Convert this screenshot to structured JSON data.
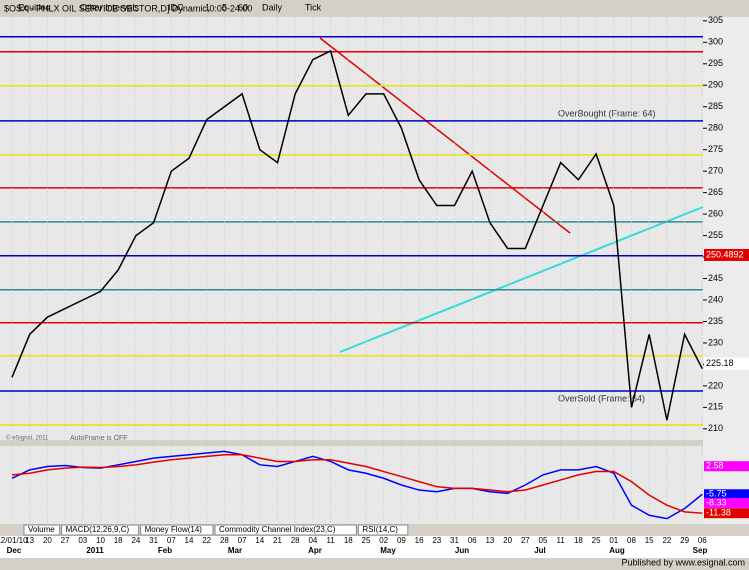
{
  "toolbar": {
    "items": [
      "Equities",
      "Other Intervals",
      "IDC",
      "1",
      "5",
      "60",
      "Daily",
      "Tick"
    ]
  },
  "chart_data": {
    "type": "line",
    "title": "$OSX - PHLX OIL SERVICE SECTOR,D] Dynamic,0:00-24:00",
    "categories": [
      "12/01/10",
      "13",
      "20",
      "27",
      "03",
      "10",
      "18",
      "24",
      "31",
      "07",
      "14",
      "22",
      "28",
      "07",
      "14",
      "21",
      "28",
      "04",
      "11",
      "18",
      "25",
      "02",
      "09",
      "16",
      "23",
      "31",
      "06",
      "13",
      "20",
      "27",
      "05",
      "11",
      "18",
      "25",
      "01",
      "08",
      "15",
      "22",
      "29",
      "06"
    ],
    "months": [
      "Dec",
      "2011",
      "Feb",
      "Mar",
      "Apr",
      "May",
      "Jun",
      "Jul",
      "Aug",
      "Sep"
    ],
    "series": [
      {
        "name": "$OSX",
        "color": "#000000",
        "values": [
          222,
          232,
          236,
          238,
          240,
          242,
          247,
          255,
          258,
          270,
          273,
          282,
          285,
          288,
          275,
          272,
          288,
          296,
          298,
          283,
          288,
          288,
          280,
          268,
          262,
          262,
          270,
          258,
          252,
          252,
          262,
          272,
          268,
          274,
          262,
          215,
          232,
          212,
          232,
          224
        ]
      }
    ],
    "levels": [
      {
        "value": 301.3,
        "color": "#0000c0"
      },
      {
        "value": 297.8,
        "color": "#e00000"
      },
      {
        "value": 289.9,
        "color": "#e6e600"
      },
      {
        "value": 281.7,
        "color": "#0000c0"
      },
      {
        "value": 273.8,
        "color": "#e6e600"
      },
      {
        "value": 266.1,
        "color": "#e00000"
      },
      {
        "value": 258.2,
        "color": "#2e8b8b"
      },
      {
        "value": 250.3,
        "color": "#0000c0"
      },
      {
        "value": 242.4,
        "color": "#2e8b8b"
      },
      {
        "value": 234.7,
        "color": "#e00000"
      },
      {
        "value": 227,
        "color": "#e6e600"
      },
      {
        "value": 218.8,
        "color": "#0000c0"
      },
      {
        "value": 210.9,
        "color": "#e6e600"
      }
    ],
    "ylim": [
      207.4,
      305.9
    ],
    "yticks": [
      305,
      300,
      295,
      290,
      285,
      280,
      275,
      270,
      265,
      260,
      255,
      250,
      245,
      240,
      235,
      230,
      225,
      220,
      215,
      210
    ],
    "tags": [
      {
        "value": 250.4892,
        "color": "#e00000"
      },
      {
        "value": 225.18,
        "color": "#ffffff"
      }
    ],
    "annotations": {
      "overbought": "OverBought (Frame: 64)",
      "oversold": "OverSold (Frame: 64)",
      "autoframe": "AutoFrame is OFF",
      "copyright": "© eSignal, 2011"
    },
    "macd": {
      "ylim": [
        -14,
        8
      ],
      "series": [
        {
          "name": "MACD",
          "color": "#0000ff",
          "values": [
            -1,
            1.5,
            2.5,
            2.8,
            2.2,
            2,
            3,
            4,
            5,
            5.5,
            6,
            6.5,
            7,
            6,
            3,
            2.5,
            4,
            5.5,
            4,
            1.5,
            0.5,
            -1,
            -3,
            -4.5,
            -5,
            -4,
            -4,
            -5,
            -5.5,
            -3,
            0,
            1.5,
            1.5,
            2.5,
            0.5,
            -9,
            -12,
            -13,
            -10,
            -5.75
          ]
        },
        {
          "name": "Signal",
          "color": "#e00000",
          "values": [
            0,
            0.5,
            1.5,
            2,
            2.3,
            2.2,
            2.5,
            3,
            3.8,
            4.5,
            5,
            5.5,
            6,
            6,
            5,
            4,
            4,
            4.5,
            4.5,
            3.5,
            2.5,
            1,
            -0.5,
            -2,
            -3.5,
            -4,
            -4,
            -4.5,
            -5,
            -4.5,
            -3,
            -1.5,
            0,
            1,
            1,
            -2,
            -6,
            -9,
            -11,
            -11.38
          ]
        }
      ],
      "tags": [
        {
          "value": 2.58,
          "color": "#ff00ff"
        },
        {
          "value": -5.75,
          "color": "#0000ff"
        },
        {
          "value": -8.33,
          "color": "#ff00ff"
        },
        {
          "value": -11.38,
          "color": "#e00000"
        }
      ]
    },
    "tabs": [
      "Volume",
      "MACD(12,26,9,C)",
      "Money Flow(14)",
      "Commodity Channel Index(23,C)",
      "RSI(14,C)"
    ]
  },
  "footer": "Published by www.esignal.com"
}
